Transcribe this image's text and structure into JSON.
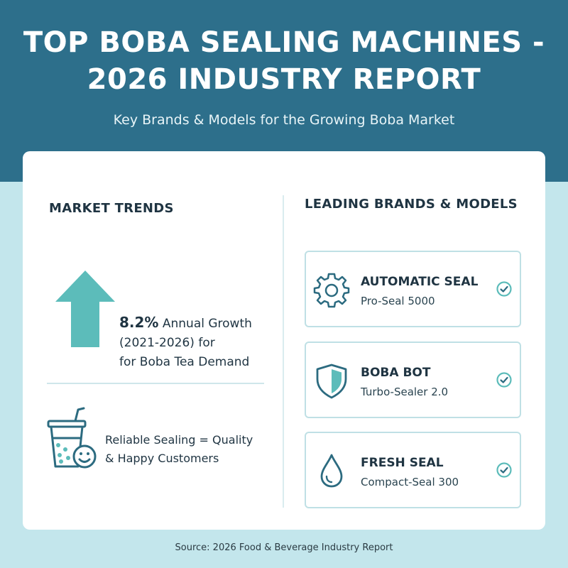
{
  "header": {
    "title_line1": "TOP BOBA SEALING MACHINES -",
    "title_line2": "2026 INDUSTRY REPORT",
    "subtitle": "Key Brands & Models for the Growing Boba Market"
  },
  "trends": {
    "heading": "MARKET TRENDS",
    "growth_percent": "8.2%",
    "growth_line1_rest": " Annual Growth",
    "growth_line2": "(2021-2026) for",
    "growth_line3": "for Boba Tea Demand",
    "quality_line1": "Reliable Sealing = Quality",
    "quality_line2": "& Happy Customers"
  },
  "brands": {
    "heading": "LEADING BRANDS & MODELS",
    "items": [
      {
        "name": "AUTOMATIC SEAL",
        "model": "Pro-Seal 5000",
        "icon": "gear-icon"
      },
      {
        "name": "BOBA BOT",
        "model": "Turbo-Sealer 2.0",
        "icon": "shield-icon"
      },
      {
        "name": "FRESH SEAL",
        "model": "Compact-Seal 300",
        "icon": "water-drop-icon"
      }
    ]
  },
  "footer": {
    "source": "Source: 2026 Food & Beverage Industry Report"
  },
  "colors": {
    "header_bg": "#2d6f8b",
    "page_bg": "#c3e6ec",
    "accent_teal": "#5cbcba",
    "icon_stroke": "#2c6b80"
  }
}
